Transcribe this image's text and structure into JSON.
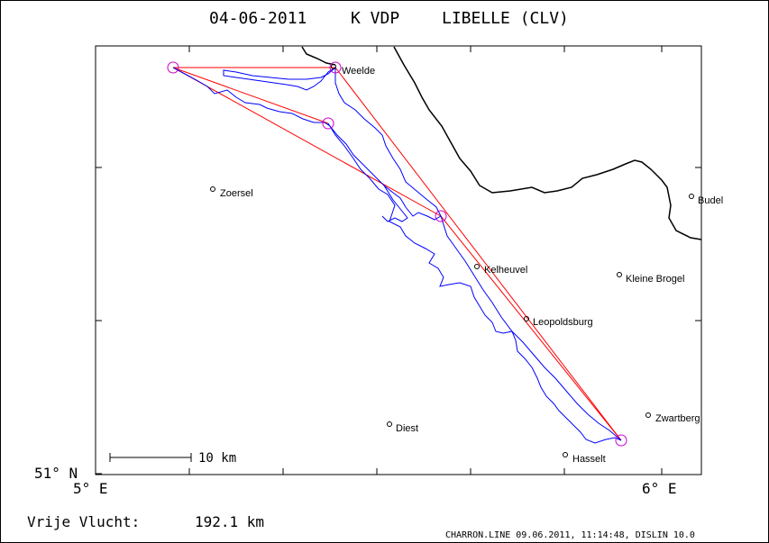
{
  "header": {
    "date": "04-06-2011",
    "pilot": "K VDP",
    "glider": "LIBELLE (CLV)"
  },
  "axes": {
    "y_tick_label": "51° N",
    "x_tick_left": "5° E",
    "x_tick_right": "6° E"
  },
  "scale_bar": {
    "label": "10 km"
  },
  "places": [
    {
      "id": "weelde",
      "name": "Weelde"
    },
    {
      "id": "zoersel",
      "name": "Zoersel"
    },
    {
      "id": "budel",
      "name": "Budel"
    },
    {
      "id": "kelheuvel",
      "name": "Kelheuvel"
    },
    {
      "id": "kleine-brogel",
      "name": "Kleine Brogel"
    },
    {
      "id": "leopoldsburg",
      "name": "Leopoldsburg"
    },
    {
      "id": "diest",
      "name": "Diest"
    },
    {
      "id": "zwartberg",
      "name": "Zwartberg"
    },
    {
      "id": "hasselt",
      "name": "Hasselt"
    }
  ],
  "footer": {
    "distance_label": "Vrije Vlucht:",
    "distance_value": "192.1 km",
    "software_line": "CHARRON.LINE 09.06.2011, 11:14:48, DISLIN 10.0"
  },
  "colors": {
    "track": "#0000ff",
    "task_line": "#ff0000",
    "turnpoint": "#cc00cc",
    "border": "#000000"
  }
}
